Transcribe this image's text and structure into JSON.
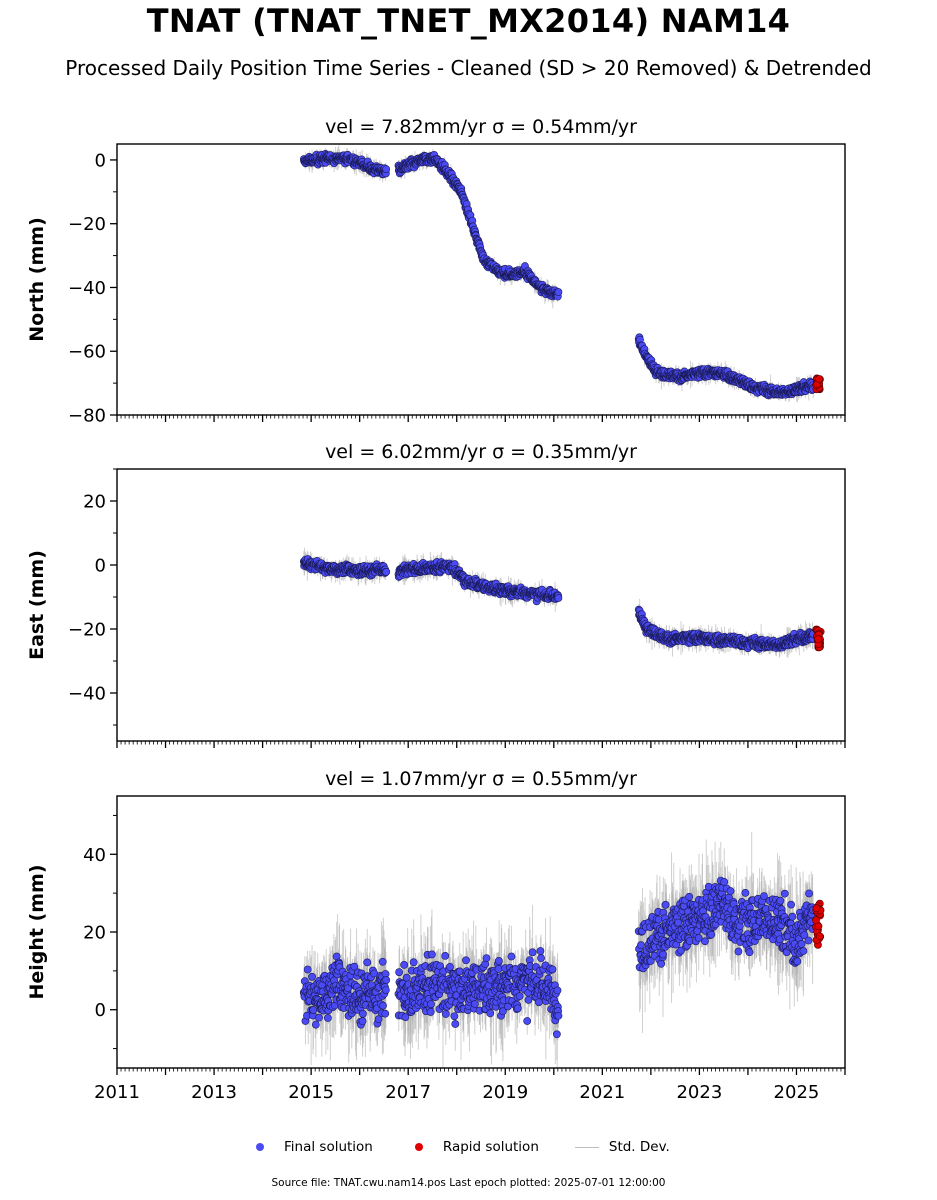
{
  "figure": {
    "title": "TNAT (TNAT_TNET_MX2014) NAM14",
    "subtitle": "Processed Daily Position Time Series - Cleaned (SD > 20 Removed) & Detrended",
    "footer": "Source file: TNAT.cwu.nam14.pos  Last epoch plotted: 2025-07-01 12:00:00"
  },
  "legend": {
    "final": "Final solution",
    "rapid": "Rapid solution",
    "stddev": "Std. Dev."
  },
  "colors": {
    "final": "#4b4bf5",
    "rapid": "#e00000",
    "stddev": "#bdbdbd"
  },
  "chart_data": [
    {
      "type": "scatter",
      "title": "vel = 7.82mm/yr   σ = 0.54mm/yr",
      "ylabel": "North (mm)",
      "xlim": [
        2011,
        2026
      ],
      "ylim": [
        -80,
        5
      ],
      "yticks": [
        -80,
        -60,
        -40,
        -20,
        0
      ],
      "xticks": [
        "2011",
        "2013",
        "2015",
        "2017",
        "2019",
        "2021",
        "2023",
        "2025"
      ],
      "grid": false,
      "segments": [
        {
          "x": [
            2014.85,
            2015.3,
            2015.8,
            2016.2,
            2016.55
          ],
          "y": [
            -0.5,
            0.5,
            0.5,
            -2.5,
            -4
          ]
        },
        {
          "x": [
            2016.8,
            2017.3,
            2017.55,
            2017.8,
            2018.1,
            2018.35,
            2018.55,
            2018.85,
            2019.1,
            2019.4,
            2019.8,
            2020.1
          ],
          "y": [
            -3,
            0,
            0.5,
            -4,
            -10,
            -22,
            -31,
            -35,
            -36,
            -35,
            -41,
            -42
          ]
        },
        {
          "x": [
            2021.75,
            2021.95,
            2022.2,
            2022.6,
            2023.0,
            2023.5,
            2023.9,
            2024.3,
            2024.7,
            2025.0,
            2025.35
          ],
          "y": [
            -57,
            -63,
            -67,
            -68,
            -67,
            -67,
            -70,
            -72,
            -73,
            -72,
            -71
          ]
        }
      ],
      "rapid": {
        "x": [
          2025.4,
          2025.5
        ],
        "y": [
          -72,
          -68
        ]
      },
      "noise": {
        "scatter": 1.0,
        "sd": 1.8
      }
    },
    {
      "type": "scatter",
      "title": "vel = 6.02mm/yr   σ = 0.35mm/yr",
      "ylabel": "East (mm)",
      "xlim": [
        2011,
        2026
      ],
      "ylim": [
        -55,
        30
      ],
      "yticks": [
        -40,
        -20,
        0,
        20
      ],
      "xticks": [
        "2011",
        "2013",
        "2015",
        "2017",
        "2019",
        "2021",
        "2023",
        "2025"
      ],
      "grid": false,
      "segments": [
        {
          "x": [
            2014.85,
            2015.4,
            2016.0,
            2016.55
          ],
          "y": [
            0.5,
            -1,
            -2,
            -1.5
          ]
        },
        {
          "x": [
            2016.8,
            2017.3,
            2017.9,
            2018.2,
            2018.6,
            2019.0,
            2019.5,
            2020.1
          ],
          "y": [
            -2,
            -1,
            -0.5,
            -5,
            -7,
            -8,
            -9,
            -10
          ]
        },
        {
          "x": [
            2021.75,
            2021.95,
            2022.3,
            2023.0,
            2023.8,
            2024.6,
            2025.35
          ],
          "y": [
            -15,
            -20,
            -23,
            -23,
            -24,
            -25,
            -22
          ]
        }
      ],
      "rapid": {
        "x": [
          2025.4,
          2025.5
        ],
        "y": [
          -26,
          -20
        ]
      },
      "noise": {
        "scatter": 1.1,
        "sd": 2.2
      }
    },
    {
      "type": "scatter",
      "title": "vel = 1.07mm/yr   σ = 0.55mm/yr",
      "ylabel": "Height (mm)",
      "xlim": [
        2011,
        2026
      ],
      "ylim": [
        -15,
        55
      ],
      "yticks": [
        0,
        20,
        40
      ],
      "xticks": [
        "2011",
        "2013",
        "2015",
        "2017",
        "2019",
        "2021",
        "2023",
        "2025"
      ],
      "grid": false,
      "segments": [
        {
          "x": [
            2014.85,
            2015.5,
            2016.0,
            2016.55
          ],
          "y": [
            3,
            6,
            3,
            5
          ]
        },
        {
          "x": [
            2016.8,
            2017.5,
            2018.3,
            2019.0,
            2019.6,
            2020.1
          ],
          "y": [
            3,
            7,
            5,
            6,
            7,
            4
          ]
        },
        {
          "x": [
            2021.75,
            2022.3,
            2022.9,
            2023.4,
            2023.9,
            2024.5,
            2025.0,
            2025.35
          ],
          "y": [
            16,
            20,
            22,
            27,
            22,
            24,
            17,
            25
          ]
        }
      ],
      "rapid": {
        "x": [
          2025.4,
          2025.5
        ],
        "y": [
          16,
          29
        ]
      },
      "noise": {
        "scatter": 5.0,
        "sd": 8.0
      }
    }
  ]
}
